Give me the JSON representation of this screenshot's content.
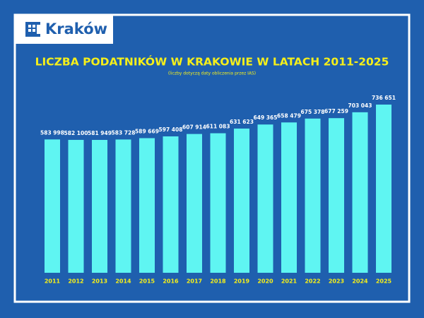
{
  "logo": "Kraków",
  "chart_data": {
    "type": "bar",
    "title": "LICZBA PODATNIKÓW W KRAKOWIE W LATACH 2011-2025",
    "subtitle": "(liczby dotyczą daty obliczenia przez IAS)",
    "categories": [
      "2011",
      "2012",
      "2013",
      "2014",
      "2015",
      "2016",
      "2017",
      "2018",
      "2019",
      "2020",
      "2021",
      "2022",
      "2023",
      "2024",
      "2025"
    ],
    "values": [
      583998,
      582100,
      581949,
      583728,
      589669,
      597408,
      607914,
      611083,
      631623,
      649365,
      658479,
      675378,
      677259,
      703043,
      736651
    ],
    "value_labels": [
      "583 998",
      "582 100",
      "581 949",
      "583 728",
      "589 669",
      "597 408",
      "607 914",
      "611 083",
      "631 623",
      "649 365",
      "658 479",
      "675 378",
      "677 259",
      "703 043",
      "736 651"
    ],
    "color": "#5ff5f2"
  }
}
